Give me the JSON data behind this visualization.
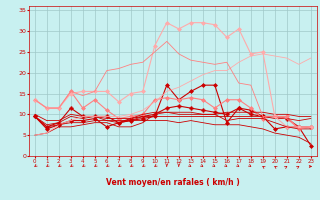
{
  "title": "",
  "xlabel": "Vent moyen/en rafales ( km/h )",
  "ylabel": "",
  "background_color": "#c8f0f0",
  "grid_color": "#a0c8c8",
  "text_color": "#cc0000",
  "xlim": [
    -0.5,
    23.5
  ],
  "ylim": [
    0,
    36
  ],
  "xticks": [
    0,
    1,
    2,
    3,
    4,
    5,
    6,
    7,
    8,
    9,
    10,
    11,
    12,
    13,
    14,
    15,
    16,
    17,
    18,
    19,
    20,
    21,
    22,
    23
  ],
  "yticks": [
    0,
    5,
    10,
    15,
    20,
    25,
    30,
    35
  ],
  "series": [
    {
      "x": [
        0,
        1,
        2,
        3,
        4,
        5,
        6,
        7,
        8,
        9,
        10,
        11,
        12,
        13,
        14,
        15,
        16,
        17,
        18,
        19,
        20,
        21,
        22,
        23
      ],
      "y": [
        9.5,
        6.5,
        7.5,
        8.5,
        8.5,
        9.0,
        7.0,
        8.0,
        8.5,
        9.0,
        9.5,
        17.0,
        13.5,
        15.5,
        17.0,
        17.0,
        8.0,
        11.5,
        11.0,
        9.5,
        6.5,
        7.0,
        7.0,
        2.5
      ],
      "color": "#cc0000",
      "marker": "D",
      "lw": 0.8,
      "ms": 2.0
    },
    {
      "x": [
        0,
        1,
        2,
        3,
        4,
        5,
        6,
        7,
        8,
        9,
        10,
        11,
        12,
        13,
        14,
        15,
        16,
        17,
        18,
        19,
        20,
        21,
        22,
        23
      ],
      "y": [
        9.5,
        7.0,
        8.0,
        11.5,
        9.5,
        9.5,
        9.5,
        8.0,
        9.0,
        9.5,
        10.0,
        11.5,
        12.0,
        11.5,
        11.0,
        10.5,
        10.0,
        11.5,
        10.0,
        9.5,
        9.5,
        9.0,
        7.0,
        7.0
      ],
      "color": "#cc0000",
      "marker": "P",
      "lw": 0.8,
      "ms": 2.5
    },
    {
      "x": [
        0,
        1,
        2,
        3,
        4,
        5,
        6,
        7,
        8,
        9,
        10,
        11,
        12,
        13,
        14,
        15,
        16,
        17,
        18,
        19,
        20,
        21,
        22,
        23
      ],
      "y": [
        13.5,
        11.5,
        11.5,
        15.5,
        11.5,
        13.5,
        11.0,
        9.0,
        9.5,
        10.0,
        13.5,
        14.0,
        13.5,
        14.0,
        13.5,
        11.5,
        13.5,
        13.5,
        11.5,
        9.0,
        9.5,
        9.5,
        6.5,
        7.0
      ],
      "color": "#ff8080",
      "marker": "D",
      "lw": 0.8,
      "ms": 2.0
    },
    {
      "x": [
        0,
        1,
        2,
        3,
        4,
        5,
        6,
        7,
        8,
        9,
        10,
        11,
        12,
        13,
        14,
        15,
        16,
        17,
        18,
        19,
        20,
        21,
        22,
        23
      ],
      "y": [
        9.5,
        7.5,
        8.0,
        9.5,
        9.0,
        9.5,
        8.5,
        8.5,
        8.5,
        9.5,
        9.5,
        9.5,
        9.5,
        9.5,
        9.5,
        9.5,
        9.5,
        9.5,
        9.5,
        9.5,
        9.0,
        9.0,
        8.5,
        9.0
      ],
      "color": "#cc0000",
      "marker": null,
      "lw": 0.6,
      "ms": 0
    },
    {
      "x": [
        0,
        1,
        2,
        3,
        4,
        5,
        6,
        7,
        8,
        9,
        10,
        11,
        12,
        13,
        14,
        15,
        16,
        17,
        18,
        19,
        20,
        21,
        22,
        23
      ],
      "y": [
        10.0,
        8.5,
        8.5,
        10.0,
        9.5,
        9.5,
        9.0,
        9.0,
        9.0,
        10.0,
        10.5,
        10.5,
        10.5,
        10.5,
        10.0,
        10.0,
        10.5,
        10.5,
        10.5,
        10.5,
        10.0,
        10.0,
        9.5,
        9.5
      ],
      "color": "#cc0000",
      "marker": null,
      "lw": 0.6,
      "ms": 0
    },
    {
      "x": [
        0,
        1,
        2,
        3,
        4,
        5,
        6,
        7,
        8,
        9,
        10,
        11,
        12,
        13,
        14,
        15,
        16,
        17,
        18,
        19,
        20,
        21,
        22,
        23
      ],
      "y": [
        13.5,
        11.5,
        11.5,
        15.0,
        15.5,
        15.5,
        15.5,
        13.0,
        15.0,
        15.5,
        26.5,
        32.0,
        30.5,
        32.0,
        32.0,
        31.5,
        28.5,
        30.5,
        24.5,
        25.0,
        9.5,
        7.0,
        7.0,
        7.0
      ],
      "color": "#ffaaaa",
      "marker": "D",
      "lw": 0.8,
      "ms": 2.0
    },
    {
      "x": [
        0,
        1,
        2,
        3,
        4,
        5,
        6,
        7,
        8,
        9,
        10,
        11,
        12,
        13,
        14,
        15,
        16,
        17,
        18,
        19,
        20,
        21,
        22,
        23
      ],
      "y": [
        5.0,
        5.5,
        7.0,
        7.0,
        7.5,
        8.0,
        8.0,
        7.0,
        7.0,
        8.0,
        10.0,
        10.5,
        10.0,
        10.0,
        10.0,
        10.0,
        8.5,
        9.0,
        9.0,
        9.0,
        8.0,
        7.0,
        6.5,
        6.5
      ],
      "color": "#cc0000",
      "marker": null,
      "lw": 0.6,
      "ms": 0
    },
    {
      "x": [
        0,
        1,
        2,
        3,
        4,
        5,
        6,
        7,
        8,
        9,
        10,
        11,
        12,
        13,
        14,
        15,
        16,
        17,
        18,
        19,
        20,
        21,
        22,
        23
      ],
      "y": [
        5.0,
        5.5,
        7.5,
        8.5,
        9.5,
        9.5,
        9.5,
        9.5,
        10.0,
        11.0,
        13.0,
        15.5,
        16.5,
        18.0,
        19.5,
        20.5,
        20.5,
        22.5,
        24.0,
        24.5,
        24.0,
        23.5,
        22.0,
        23.5
      ],
      "color": "#ffaaaa",
      "marker": null,
      "lw": 0.6,
      "ms": 0
    },
    {
      "x": [
        0,
        1,
        2,
        3,
        4,
        5,
        6,
        7,
        8,
        9,
        10,
        11,
        12,
        13,
        14,
        15,
        16,
        17,
        18,
        19,
        20,
        21,
        22,
        23
      ],
      "y": [
        9.5,
        7.0,
        7.5,
        8.0,
        8.0,
        8.5,
        8.5,
        8.0,
        8.5,
        8.5,
        8.5,
        8.5,
        8.0,
        8.5,
        8.0,
        7.5,
        7.5,
        7.5,
        7.0,
        6.5,
        5.5,
        5.0,
        4.5,
        3.0
      ],
      "color": "#cc0000",
      "marker": null,
      "lw": 0.6,
      "ms": 0
    },
    {
      "x": [
        0,
        1,
        2,
        3,
        4,
        5,
        6,
        7,
        8,
        9,
        10,
        11,
        12,
        13,
        14,
        15,
        16,
        17,
        18,
        19,
        20,
        21,
        22,
        23
      ],
      "y": [
        13.5,
        11.5,
        11.5,
        15.5,
        14.5,
        15.5,
        20.5,
        21.0,
        22.0,
        22.5,
        25.0,
        27.5,
        24.5,
        23.0,
        22.5,
        22.0,
        22.5,
        17.5,
        17.0,
        9.5,
        9.5,
        9.0,
        6.5,
        7.0
      ],
      "color": "#ff8080",
      "marker": null,
      "lw": 0.6,
      "ms": 0
    }
  ],
  "arrow_color": "#cc0000",
  "arrow_directions": [
    225,
    225,
    225,
    225,
    225,
    225,
    225,
    225,
    225,
    225,
    225,
    180,
    180,
    135,
    135,
    135,
    135,
    135,
    135,
    315,
    315,
    45,
    45,
    90
  ]
}
